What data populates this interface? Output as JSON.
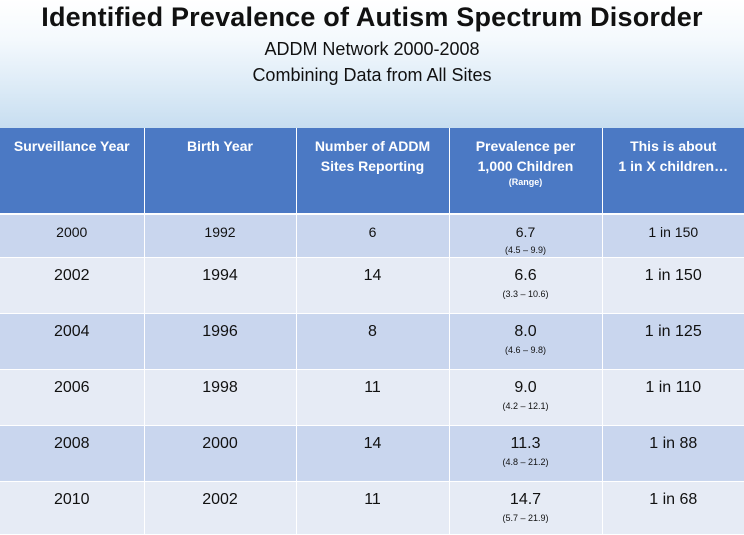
{
  "title": "Identified Prevalence of Autism Spectrum Disorder",
  "subtitle_lines": [
    "ADDM Network 2000-2008",
    "Combining Data from All Sites"
  ],
  "colors": {
    "header_bg": "#4b79c4",
    "row_dark": "#c9d6ee",
    "row_light": "#e6ebf5"
  },
  "table": {
    "headers": {
      "surveillance_year": "Surveillance Year",
      "birth_year": "Birth Year",
      "sites_line1": "Number of ADDM",
      "sites_line2": "Sites Reporting",
      "prevalence_line1": "Prevalence per",
      "prevalence_line2": "1,000 Children",
      "prevalence_range": "(Range)",
      "about_line1": "This is about",
      "about_line2": "1 in X children…"
    },
    "rows": [
      {
        "surveillance_year": "2000",
        "birth_year": "1992",
        "sites": "6",
        "prevalence": "6.7",
        "range": "(4.5 – 9.9)",
        "about": "1 in 150"
      },
      {
        "surveillance_year": "2002",
        "birth_year": "1994",
        "sites": "14",
        "prevalence": "6.6",
        "range": "(3.3 – 10.6)",
        "about": "1 in 150"
      },
      {
        "surveillance_year": "2004",
        "birth_year": "1996",
        "sites": "8",
        "prevalence": "8.0",
        "range": "(4.6 – 9.8)",
        "about": "1 in 125"
      },
      {
        "surveillance_year": "2006",
        "birth_year": "1998",
        "sites": "11",
        "prevalence": "9.0",
        "range": "(4.2 – 12.1)",
        "about": "1 in 110"
      },
      {
        "surveillance_year": "2008",
        "birth_year": "2000",
        "sites": "14",
        "prevalence": "11.3",
        "range": "(4.8 – 21.2)",
        "about": "1 in 88"
      },
      {
        "surveillance_year": "2010",
        "birth_year": "2002",
        "sites": "11",
        "prevalence": "14.7",
        "range": "(5.7 – 21.9)",
        "about": "1 in 68"
      }
    ]
  }
}
